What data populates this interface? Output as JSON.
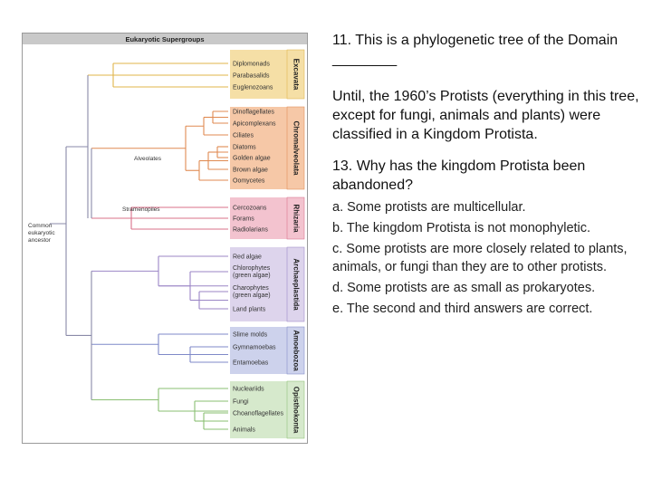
{
  "figure": {
    "title": "Eukaryotic Supergroups",
    "root_label": [
      "Common",
      "eukaryotic",
      "ancestor"
    ],
    "subgroup_labels": {
      "alveolates": "Alveolates",
      "stramenopiles": "Stramenopiles"
    },
    "groups": [
      {
        "name": "Excavata",
        "color": "#f5dfa6",
        "line": "#e0b44a",
        "taxa": [
          "Diplomonads",
          "Parabasalids",
          "Euglenozoans"
        ]
      },
      {
        "name": "Chromalveolata",
        "color": "#f6c8a7",
        "line": "#e08a52",
        "taxa": [
          "Dinoflagellates",
          "Apicomplexans",
          "Ciliates",
          "Diatoms",
          "Golden algae",
          "Brown algae",
          "Oomycetes"
        ]
      },
      {
        "name": "Rhizaria",
        "color": "#f3c3cf",
        "line": "#d9708a",
        "taxa": [
          "Cercozoans",
          "Forams",
          "Radiolarians"
        ]
      },
      {
        "name": "Archaeplastida",
        "color": "#ddd4ec",
        "line": "#9b86c6",
        "taxa": [
          "Red algae",
          "Chlorophytes (green algae)",
          "Charophytes (green algae)",
          "Land plants"
        ]
      },
      {
        "name": "Amoebozoa",
        "color": "#cdd2ec",
        "line": "#7f89c8",
        "taxa": [
          "Slime molds",
          "Gymnamoebas",
          "Entamoebas"
        ]
      },
      {
        "name": "Opisthokonta",
        "color": "#d6e9cc",
        "line": "#8abf72",
        "taxa": [
          "Nucleariids",
          "Fungi",
          "Choanoflagellates",
          "Animals"
        ]
      }
    ]
  },
  "text": {
    "q11": "11. This is a phylogenetic tree of the Domain ________",
    "history": "Until, the 1960’s Protists (everything in this tree, except for fungi, animals and plants) were classified in a Kingdom Protista.",
    "q13": "13. Why has the kingdom Protista been abandoned?",
    "options": {
      "a": "a. Some protists are multicellular.",
      "b": "b. The kingdom Protista is not monophyletic.",
      "c": "c. Some protists are more closely related to plants, animals, or fungi than they are to other protists.",
      "d": "d. Some protists are as small as prokaryotes.",
      "e": "e. The second and third answers are correct."
    }
  }
}
